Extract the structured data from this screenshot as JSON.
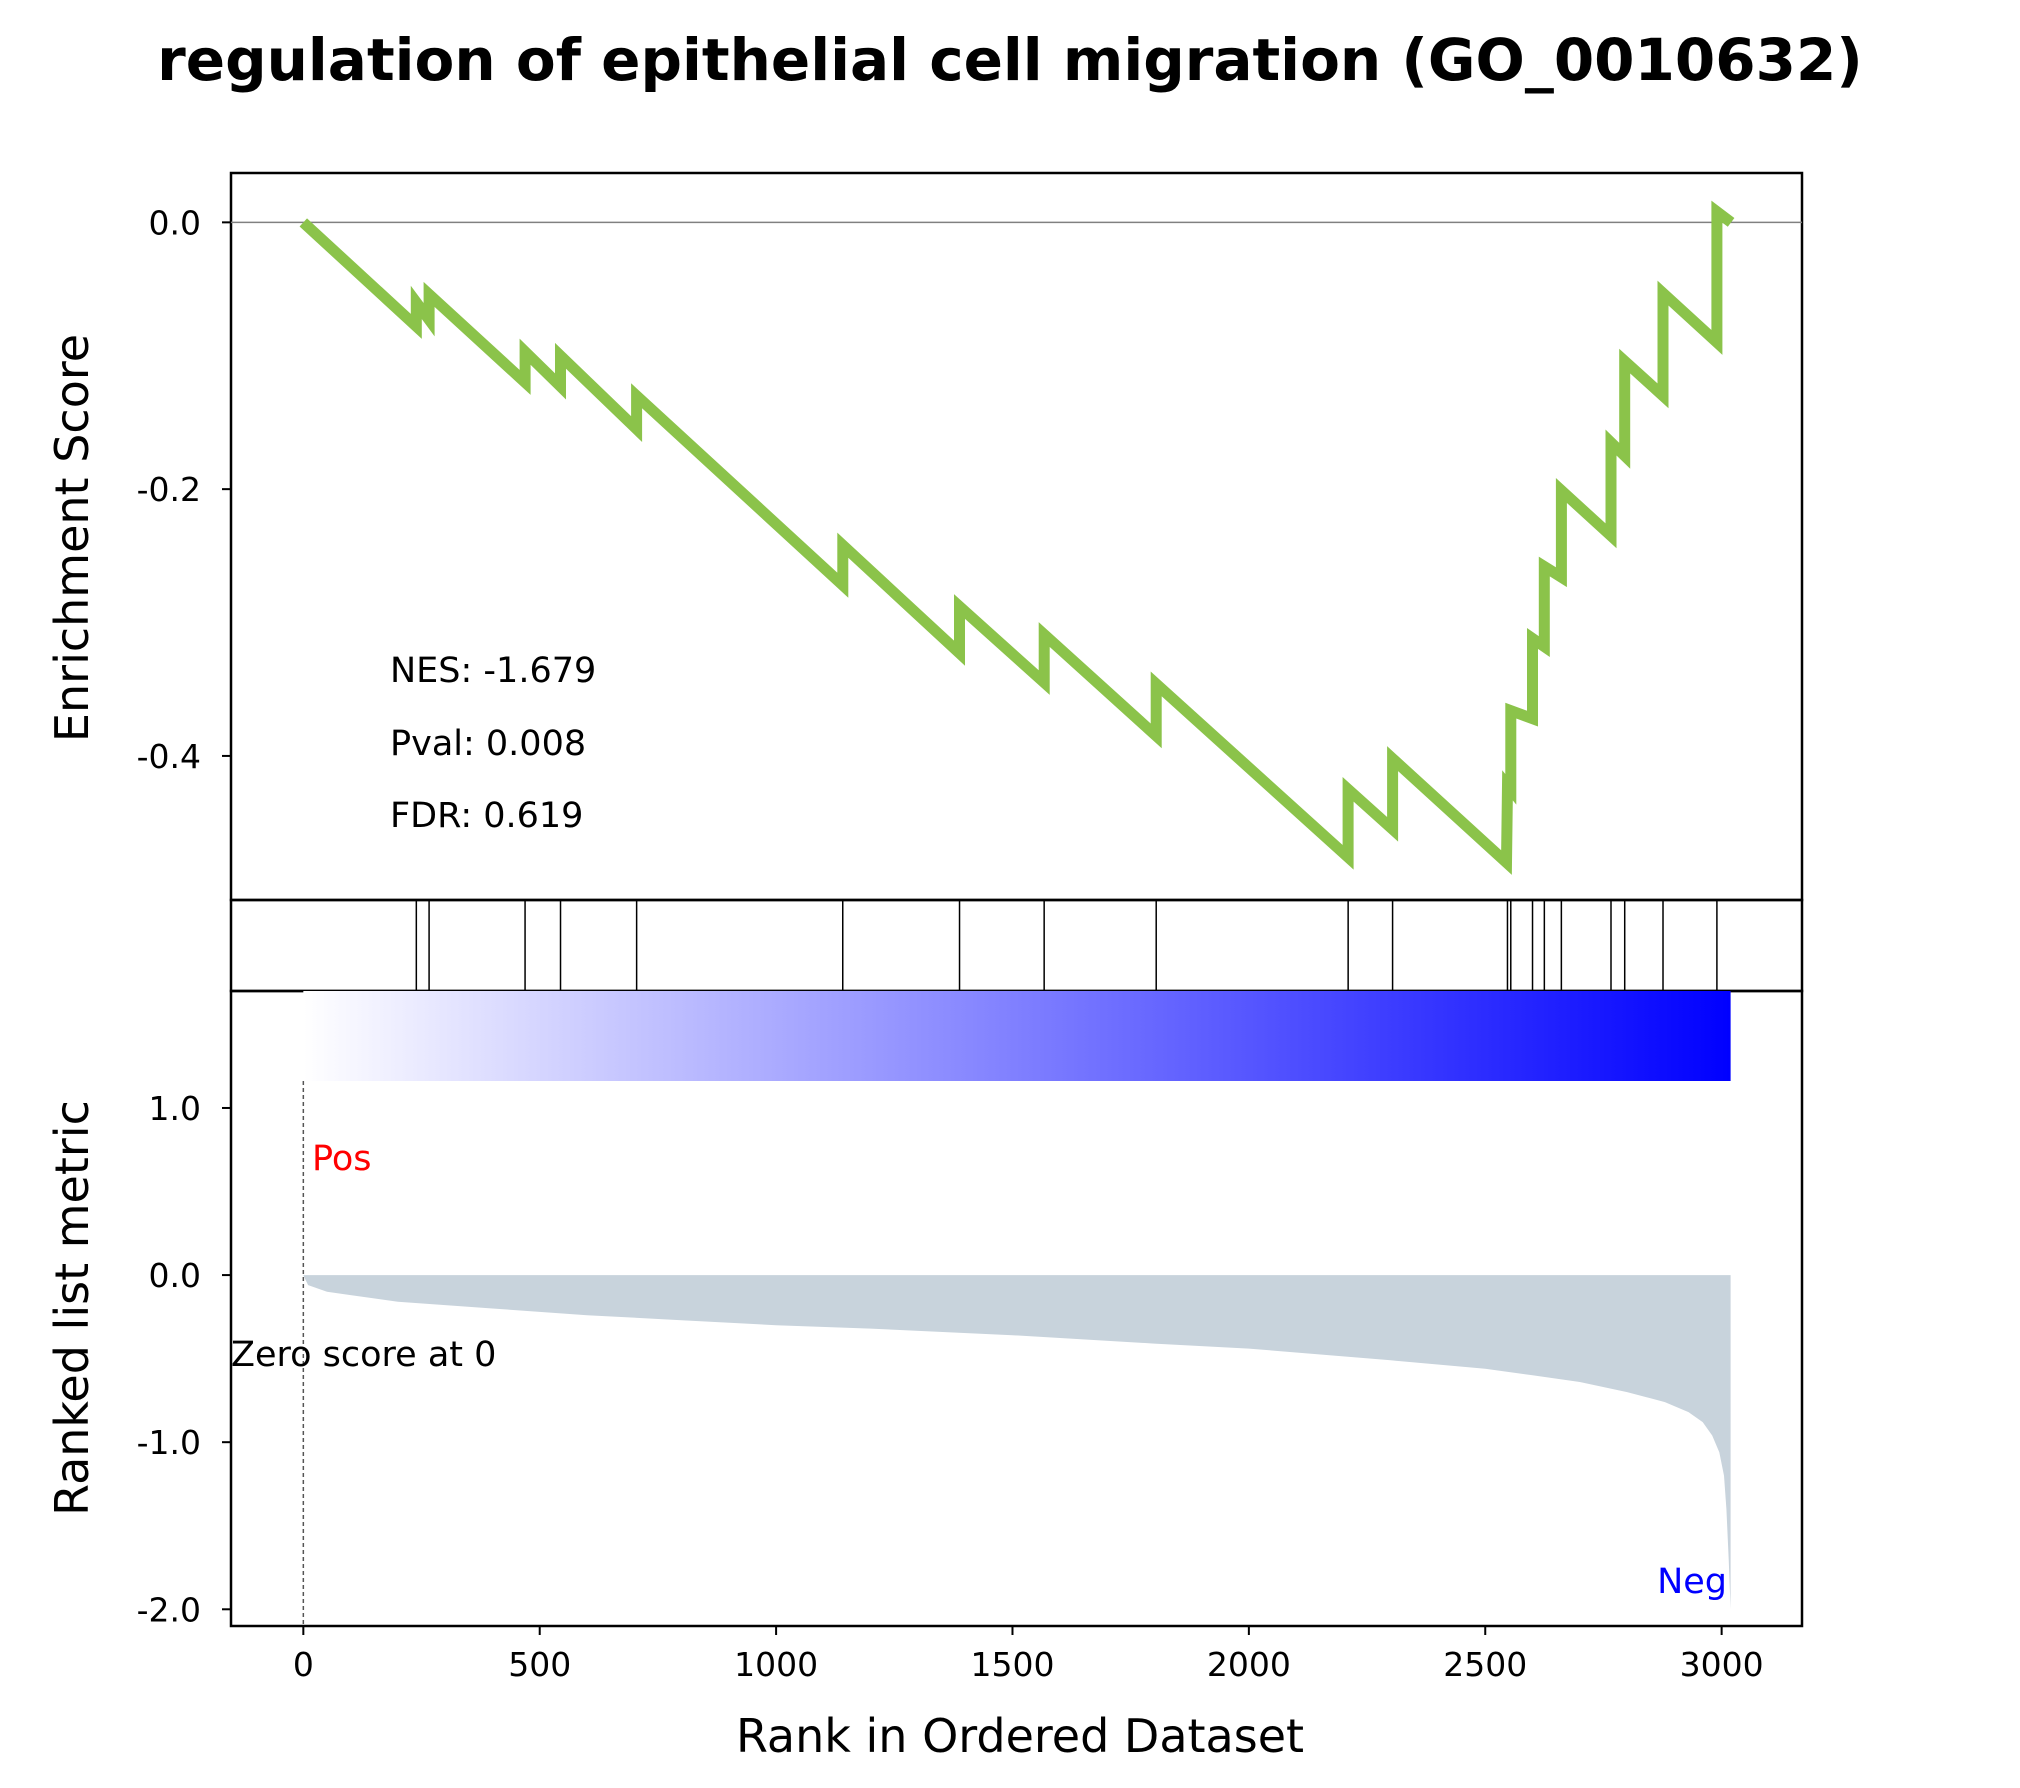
{
  "chart_data": {
    "type": "line",
    "title": "regulation of epithelial cell migration (GO_0010632)",
    "xlabel": "Rank in Ordered Dataset",
    "es_panel": {
      "ylabel": "Enrichment Score",
      "yticks": [
        {
          "value": 0.0,
          "label": "0.0"
        },
        {
          "value": -0.2,
          "label": "-0.2"
        },
        {
          "value": -0.4,
          "label": "-0.4"
        }
      ],
      "ylim": [
        -0.508,
        0.037
      ],
      "line_color": "#8bc34a",
      "series": [
        {
          "x": [
            0,
            239,
            239,
            266,
            266,
            469,
            469,
            544,
            544,
            705,
            705,
            1141,
            1141,
            1388,
            1388,
            1567,
            1567,
            1804,
            1804,
            2210,
            2210,
            2304,
            2304,
            2545,
            2547,
            2554,
            2554,
            2600,
            2600,
            2625,
            2625,
            2661,
            2661,
            2766,
            2766,
            2795,
            2795,
            2876,
            2876,
            2990,
            2990,
            3020
          ],
          "y": [
            0.0,
            -0.078,
            -0.06,
            -0.073,
            -0.054,
            -0.12,
            -0.097,
            -0.123,
            -0.1,
            -0.155,
            -0.13,
            -0.272,
            -0.242,
            -0.323,
            -0.288,
            -0.345,
            -0.309,
            -0.385,
            -0.346,
            -0.476,
            -0.425,
            -0.455,
            -0.402,
            -0.48,
            -0.422,
            -0.425,
            -0.366,
            -0.372,
            -0.312,
            -0.318,
            -0.258,
            -0.266,
            -0.201,
            -0.235,
            -0.165,
            -0.175,
            -0.104,
            -0.13,
            -0.053,
            -0.09,
            0.008,
            0.0
          ]
        }
      ],
      "hline_at": 0.0,
      "stats": {
        "nes": "NES: -1.679",
        "pval": "Pval: 0.008",
        "fdr": "FDR: 0.619"
      }
    },
    "hits_panel": {
      "hit_ranks": [
        239,
        266,
        469,
        544,
        705,
        1141,
        1388,
        1567,
        1804,
        2210,
        2304,
        2547,
        2554,
        2600,
        2625,
        2661,
        2766,
        2795,
        2876,
        2990
      ]
    },
    "metric_panel": {
      "ylabel": "Ranked list metric",
      "yticks": [
        {
          "value": 1.0,
          "label": "1.0"
        },
        {
          "value": 0.0,
          "label": "0.0"
        },
        {
          "value": -1.0,
          "label": "-1.0"
        },
        {
          "value": -2.0,
          "label": "-2.0"
        }
      ],
      "ylim": [
        -2.1,
        1.7
      ],
      "heatmap_colors": [
        "#ffffff",
        "#0000ff"
      ],
      "fill_color": "#c8d3dc",
      "metric_curve": {
        "x": [
          0,
          10,
          50,
          100,
          200,
          400,
          600,
          800,
          1000,
          1200,
          1500,
          1800,
          2000,
          2300,
          2500,
          2600,
          2700,
          2800,
          2880,
          2930,
          2960,
          2980,
          2995,
          3005,
          3010,
          3015,
          3019
        ],
        "y": [
          0.0,
          -0.06,
          -0.1,
          -0.12,
          -0.16,
          -0.2,
          -0.24,
          -0.27,
          -0.3,
          -0.32,
          -0.36,
          -0.41,
          -0.44,
          -0.51,
          -0.56,
          -0.6,
          -0.64,
          -0.7,
          -0.76,
          -0.82,
          -0.88,
          -0.96,
          -1.06,
          -1.2,
          -1.4,
          -1.7,
          -2.0
        ]
      },
      "zero_score_label": "Zero score at 0",
      "pos_label": "Pos",
      "neg_label": "Neg",
      "pos_color": "#ff0000",
      "neg_color": "#0000ff"
    },
    "xticks": [
      {
        "value": 0,
        "label": "0"
      },
      {
        "value": 500,
        "label": "500"
      },
      {
        "value": 1000,
        "label": "1000"
      },
      {
        "value": 1500,
        "label": "1500"
      },
      {
        "value": 2000,
        "label": "2000"
      },
      {
        "value": 2500,
        "label": "2500"
      },
      {
        "value": 3000,
        "label": "3000"
      }
    ],
    "xlim": [
      -153,
      3170
    ]
  }
}
